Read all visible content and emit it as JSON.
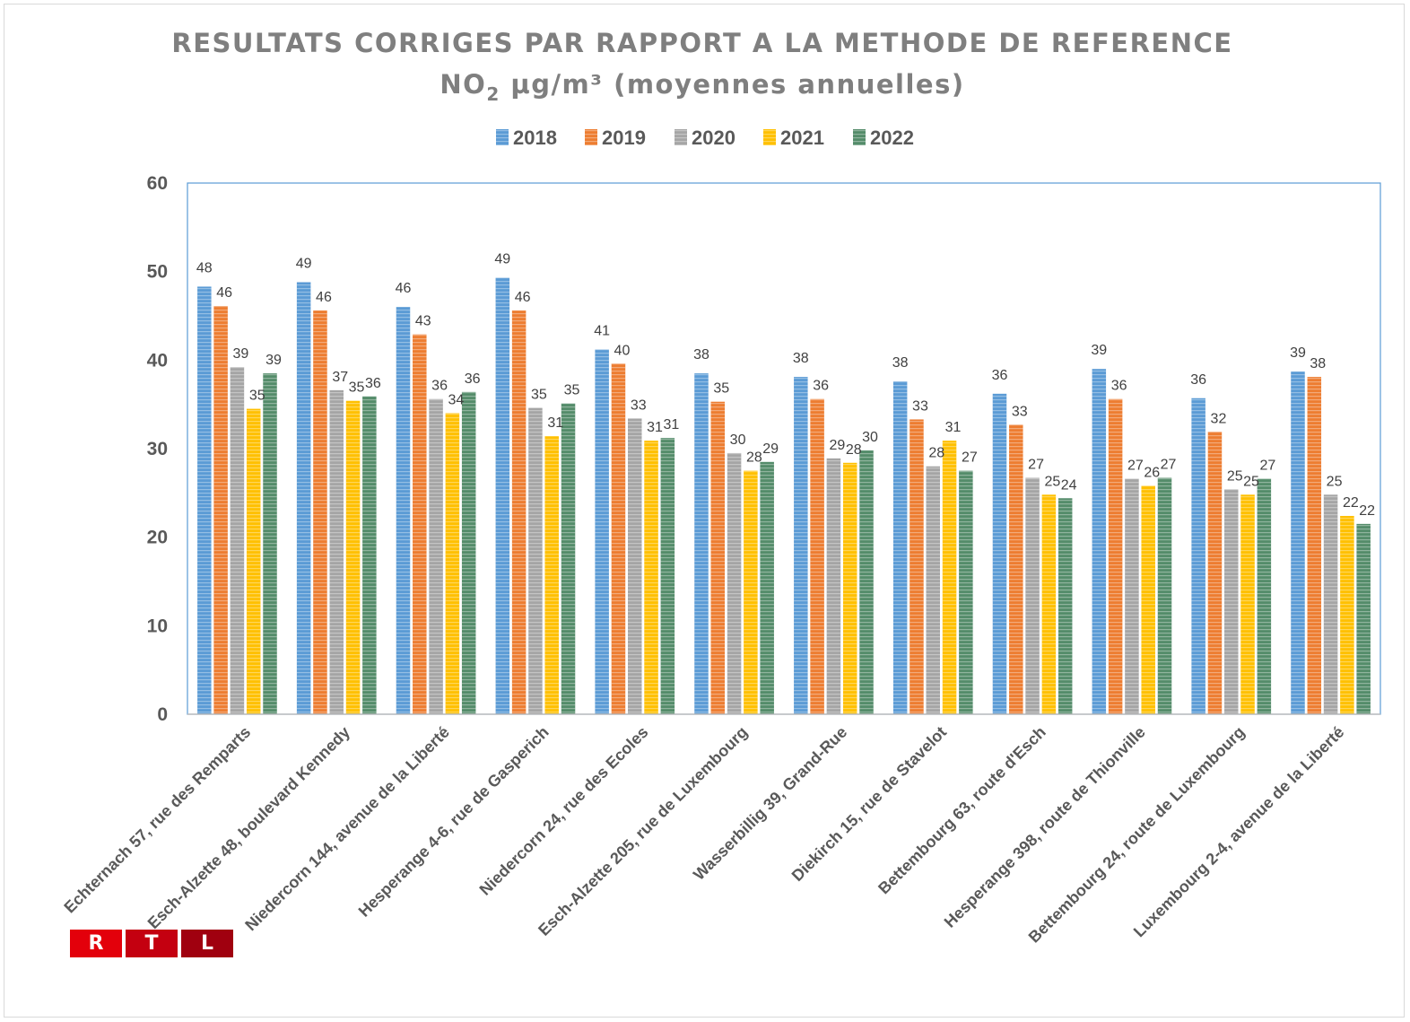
{
  "chart_data": {
    "type": "bar",
    "title": "RESULTATS CORRIGES PAR RAPPORT A LA METHODE DE REFERENCE",
    "subtitle_parts": {
      "pre": "NO",
      "sub": "2",
      "post": " µg/m³ (moyennes annuelles)"
    },
    "xlabel": "",
    "ylabel": "",
    "ylim": [
      0,
      60
    ],
    "yticks": [
      0,
      10,
      20,
      30,
      40,
      50,
      60
    ],
    "grid": false,
    "legend_position": "top-center",
    "categories": [
      "Echternach 57, rue des Remparts",
      "Esch-Alzette 48, boulevard Kennedy",
      "Niedercorn 144, avenue de la Liberté",
      "Hesperange 4-6, rue de Gasperich",
      "Niedercorn 24, rue des Ecoles",
      "Esch-Alzette 205, rue de Luxembourg",
      "Wasserbillig 39, Grand-Rue",
      "Diekirch 15, rue de Stavelot",
      "Bettembourg 63, route d'Esch",
      "Hesperange 398, route de Thionville",
      "Bettembourg 24, route de Luxembourg",
      "Luxembourg 2-4, avenue de la Liberté"
    ],
    "series": [
      {
        "name": "2018",
        "color": "#5b9bd5",
        "values": [
          48.3,
          48.8,
          46.0,
          49.3,
          41.2,
          38.5,
          38.1,
          37.6,
          36.2,
          39.0,
          35.7,
          38.7
        ]
      },
      {
        "name": "2019",
        "color": "#ed7d31",
        "values": [
          46.1,
          45.6,
          42.9,
          45.6,
          39.6,
          35.3,
          35.6,
          33.3,
          32.7,
          35.6,
          31.9,
          38.1
        ]
      },
      {
        "name": "2020",
        "color": "#a5a5a5",
        "values": [
          39.2,
          36.6,
          35.6,
          34.6,
          33.4,
          29.5,
          28.9,
          28.0,
          26.7,
          26.6,
          25.4,
          24.8
        ]
      },
      {
        "name": "2021",
        "color": "#ffc000",
        "values": [
          34.5,
          35.4,
          34.0,
          31.4,
          30.9,
          27.5,
          28.4,
          30.9,
          24.8,
          25.8,
          24.8,
          22.4
        ]
      },
      {
        "name": "2022",
        "color": "#548c6a",
        "values": [
          38.5,
          35.9,
          36.4,
          35.1,
          31.2,
          28.5,
          29.8,
          27.5,
          24.4,
          26.7,
          26.6,
          21.5
        ]
      }
    ],
    "data_labels": [
      [
        "48",
        "46",
        "39",
        "35",
        "39"
      ],
      [
        "49",
        "46",
        "37",
        "35",
        "36"
      ],
      [
        "46",
        "43",
        "36",
        "34",
        "36"
      ],
      [
        "49",
        "46",
        "35",
        "31",
        "35"
      ],
      [
        "41",
        "40",
        "33",
        "31",
        "31"
      ],
      [
        "38",
        "35",
        "30",
        "28",
        "29"
      ],
      [
        "38",
        "36",
        "29",
        "28",
        "30"
      ],
      [
        "38",
        "33",
        "28",
        "31",
        "27"
      ],
      [
        "36",
        "33",
        "27",
        "25",
        "24"
      ],
      [
        "39",
        "36",
        "27",
        "26",
        "27"
      ],
      [
        "36",
        "32",
        "25",
        "25",
        "27"
      ],
      [
        "39",
        "38",
        "25",
        "22",
        "22"
      ]
    ]
  },
  "logo": {
    "letters": [
      "R",
      "T",
      "L"
    ],
    "colors": [
      "#e3000b",
      "#c40010",
      "#a0000f"
    ]
  }
}
